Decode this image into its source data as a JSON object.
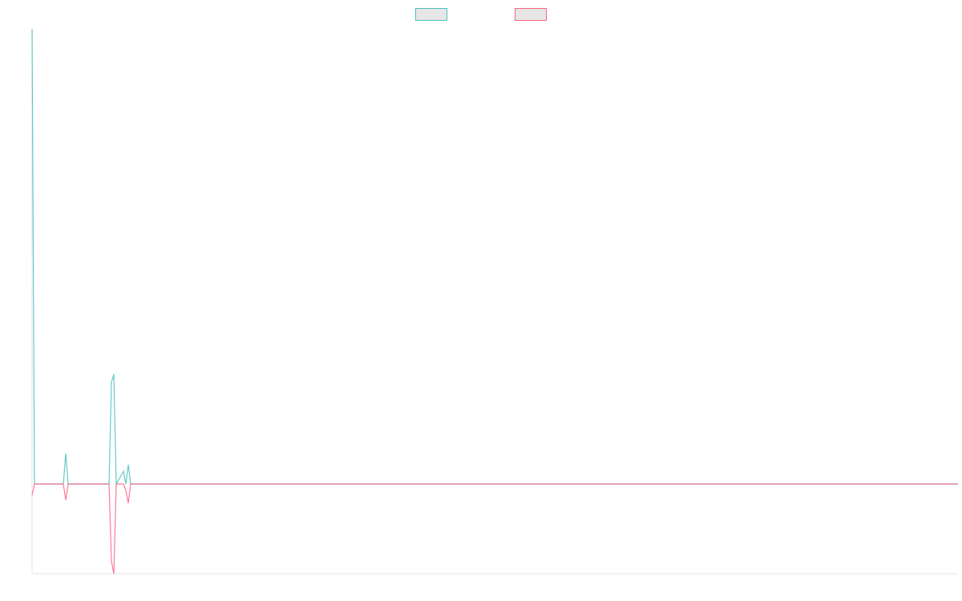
{
  "chart_data": {
    "type": "line",
    "xlim": [
      0,
      385
    ],
    "ylim": [
      -11.2,
      56.8
    ],
    "legend": "top",
    "series": [
      {
        "color": "#4bc0c0",
        "x": [
          0,
          1,
          13,
          14,
          15,
          32,
          33,
          34,
          35,
          38,
          39,
          40,
          41,
          385
        ],
        "values": [
          56.8,
          0,
          0,
          3.8,
          0,
          0,
          12.7,
          13.7,
          0,
          1.6,
          0,
          2.4,
          0,
          0
        ]
      },
      {
        "color": "#ff6384",
        "x": [
          0,
          1,
          13,
          14,
          15,
          32,
          33,
          34,
          35,
          38,
          39,
          40,
          41,
          385
        ],
        "values": [
          -1.4,
          0,
          0,
          -2,
          0,
          0,
          -9.6,
          -11.2,
          0,
          0,
          -0.8,
          -2.4,
          0,
          0
        ]
      }
    ]
  }
}
